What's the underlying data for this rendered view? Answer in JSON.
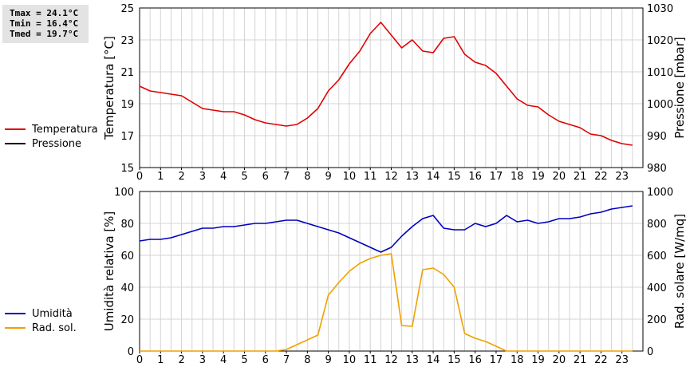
{
  "stats": {
    "tmax": "Tmax = 24.1°C",
    "tmin": "Tmin = 16.4°C",
    "tmed": "Tmed = 19.7°C"
  },
  "colors": {
    "temperature": "#e00000",
    "pressure": "#000000",
    "humidity": "#0000c0",
    "radiation": "#f0a000"
  },
  "chart_data": [
    {
      "type": "line",
      "ylabel": "Temperatura [°C]",
      "ylabel_right": "Pressione [mbar]",
      "ylim": [
        15,
        25
      ],
      "yticks": [
        15,
        17,
        19,
        21,
        23,
        25
      ],
      "ylim_right": [
        980,
        1030
      ],
      "yticks_right": [
        980,
        990,
        1000,
        1010,
        1020,
        1030
      ],
      "xlim": [
        0,
        24
      ],
      "xticks": [
        0,
        1,
        2,
        3,
        4,
        5,
        6,
        7,
        8,
        9,
        10,
        11,
        12,
        13,
        14,
        15,
        16,
        17,
        18,
        19,
        20,
        21,
        22,
        23
      ],
      "grid": true,
      "series": [
        {
          "name": "Temperatura",
          "color": "#e00000",
          "x": [
            0,
            0.5,
            1,
            1.5,
            2,
            2.5,
            3,
            3.5,
            4,
            4.5,
            5,
            5.5,
            6,
            6.5,
            7,
            7.5,
            8,
            8.5,
            9,
            9.5,
            10,
            10.5,
            11,
            11.5,
            12,
            12.5,
            13,
            13.5,
            14,
            14.5,
            15,
            15.5,
            16,
            16.5,
            17,
            17.5,
            18,
            18.5,
            19,
            19.5,
            20,
            20.5,
            21,
            21.5,
            22,
            22.5,
            23,
            23.5
          ],
          "y": [
            20.1,
            19.8,
            19.7,
            19.6,
            19.5,
            19.1,
            18.7,
            18.6,
            18.5,
            18.5,
            18.3,
            18.0,
            17.8,
            17.7,
            17.6,
            17.7,
            18.1,
            18.7,
            19.8,
            20.5,
            21.5,
            22.3,
            23.4,
            24.1,
            23.3,
            22.5,
            23.0,
            22.3,
            22.2,
            23.1,
            23.2,
            22.1,
            21.6,
            21.4,
            20.9,
            20.1,
            19.3,
            18.9,
            18.8,
            18.3,
            17.9,
            17.7,
            17.5,
            17.1,
            17.0,
            16.7,
            16.5,
            16.4
          ]
        },
        {
          "name": "Pressione",
          "color": "#000000",
          "x": [],
          "y": []
        }
      ]
    },
    {
      "type": "line",
      "ylabel": "Umidità relativa [%]",
      "ylabel_right": "Rad. solare [W/mq]",
      "ylim": [
        0,
        100
      ],
      "yticks": [
        0,
        20,
        40,
        60,
        80,
        100
      ],
      "ylim_right": [
        0,
        1000
      ],
      "yticks_right": [
        0,
        200,
        400,
        600,
        800,
        1000
      ],
      "xlim": [
        0,
        24
      ],
      "xticks": [
        0,
        1,
        2,
        3,
        4,
        5,
        6,
        7,
        8,
        9,
        10,
        11,
        12,
        13,
        14,
        15,
        16,
        17,
        18,
        19,
        20,
        21,
        22,
        23
      ],
      "grid": true,
      "series": [
        {
          "name": "Umidità",
          "color": "#0000c0",
          "axis": "left",
          "x": [
            0,
            0.5,
            1,
            1.5,
            2,
            2.5,
            3,
            3.5,
            4,
            4.5,
            5,
            5.5,
            6,
            6.5,
            7,
            7.5,
            8,
            8.5,
            9,
            9.5,
            10,
            10.5,
            11,
            11.5,
            12,
            12.5,
            13,
            13.5,
            14,
            14.5,
            15,
            15.5,
            16,
            16.5,
            17,
            17.5,
            18,
            18.5,
            19,
            19.5,
            20,
            20.5,
            21,
            21.5,
            22,
            22.5,
            23,
            23.5
          ],
          "y": [
            69,
            70,
            70,
            71,
            73,
            75,
            77,
            77,
            78,
            78,
            79,
            80,
            80,
            81,
            82,
            82,
            80,
            78,
            76,
            74,
            71,
            68,
            65,
            62,
            65,
            72,
            78,
            83,
            85,
            77,
            76,
            76,
            80,
            78,
            80,
            85,
            81,
            82,
            80,
            81,
            83,
            83,
            84,
            86,
            87,
            89,
            90,
            91
          ]
        },
        {
          "name": "Rad. sol.",
          "color": "#f0a000",
          "axis": "right",
          "x": [
            0,
            0.5,
            1,
            1.5,
            2,
            2.5,
            3,
            3.5,
            4,
            4.5,
            5,
            5.5,
            6,
            6.5,
            7,
            7.5,
            8,
            8.5,
            9,
            9.5,
            10,
            10.5,
            11,
            11.5,
            12,
            12.5,
            13,
            13.5,
            14,
            14.5,
            15,
            15.5,
            16,
            16.5,
            17,
            17.5,
            18,
            18.5,
            19,
            19.5,
            20,
            20.5,
            21,
            21.5,
            22,
            22.5,
            23,
            23.5
          ],
          "y": [
            0,
            0,
            0,
            0,
            0,
            0,
            0,
            0,
            0,
            0,
            0,
            0,
            0,
            0,
            10,
            40,
            70,
            100,
            350,
            430,
            500,
            550,
            580,
            600,
            610,
            160,
            155,
            510,
            520,
            480,
            400,
            110,
            80,
            60,
            30,
            0,
            0,
            0,
            0,
            0,
            0,
            0,
            0,
            0,
            0,
            0,
            0,
            0
          ]
        }
      ]
    }
  ]
}
